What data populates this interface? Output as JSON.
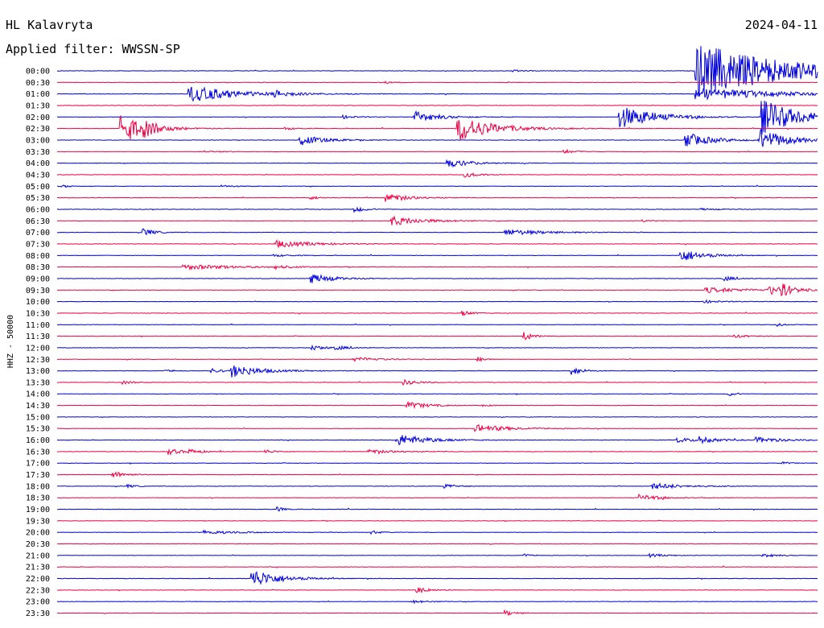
{
  "header": {
    "station": "HL Kalavryta",
    "date": "2024-04-11",
    "filter_label": "Applied filter: WWSSN-SP"
  },
  "chart_data": {
    "type": "line",
    "title": "HL Kalavryta",
    "subtitle": "Applied filter: WWSSN-SP",
    "date": "2024-04-11",
    "ylabel": "HHZ - 50000",
    "xlabel": "",
    "rows": [
      "00:00",
      "00:30",
      "01:00",
      "01:30",
      "02:00",
      "02:30",
      "03:00",
      "03:30",
      "04:00",
      "04:30",
      "05:00",
      "05:30",
      "06:00",
      "06:30",
      "07:00",
      "07:30",
      "08:00",
      "08:30",
      "09:00",
      "09:30",
      "10:00",
      "10:30",
      "11:00",
      "11:30",
      "12:00",
      "12:30",
      "13:00",
      "13:30",
      "14:00",
      "14:30",
      "15:00",
      "15:30",
      "16:00",
      "16:30",
      "17:00",
      "17:30",
      "18:00",
      "18:30",
      "19:00",
      "19:30",
      "20:00",
      "20:30",
      "21:00",
      "21:30",
      "22:00",
      "22:30",
      "23:00",
      "23:30"
    ],
    "minutes_per_row": 30,
    "colors": [
      "#0000dd",
      "#ee0044"
    ],
    "events": [
      {
        "row": 0,
        "minute": 18.0,
        "amp": 0.15,
        "dur": 0.6
      },
      {
        "row": 0,
        "minute": 26.0,
        "amp": 0.18,
        "dur": 0.7
      },
      {
        "row": 0,
        "minute": 25.2,
        "amp": 5.2,
        "dur": 3.5
      },
      {
        "row": 1,
        "minute": 13.0,
        "amp": 0.2,
        "dur": 0.4
      },
      {
        "row": 2,
        "minute": 5.2,
        "amp": 1.6,
        "dur": 1.8
      },
      {
        "row": 2,
        "minute": 8.6,
        "amp": 0.5,
        "dur": 0.6
      },
      {
        "row": 2,
        "minute": 25.2,
        "amp": 1.2,
        "dur": 3.0
      },
      {
        "row": 4,
        "minute": 11.3,
        "amp": 0.3,
        "dur": 0.5
      },
      {
        "row": 4,
        "minute": 14.1,
        "amp": 1.1,
        "dur": 0.9
      },
      {
        "row": 4,
        "minute": 22.2,
        "amp": 2.2,
        "dur": 1.3
      },
      {
        "row": 4,
        "minute": 27.8,
        "amp": 3.4,
        "dur": 1.4
      },
      {
        "row": 5,
        "minute": 2.5,
        "amp": 3.3,
        "dur": 0.8
      },
      {
        "row": 5,
        "minute": 3.4,
        "amp": 0.8,
        "dur": 0.6
      },
      {
        "row": 5,
        "minute": 15.8,
        "amp": 2.6,
        "dur": 1.3
      },
      {
        "row": 5,
        "minute": 9.0,
        "amp": 0.25,
        "dur": 0.4
      },
      {
        "row": 6,
        "minute": 9.6,
        "amp": 1.0,
        "dur": 0.9
      },
      {
        "row": 6,
        "minute": 24.8,
        "amp": 1.4,
        "dur": 1.0
      },
      {
        "row": 6,
        "minute": 27.7,
        "amp": 2.2,
        "dur": 1.0
      },
      {
        "row": 7,
        "minute": 20.0,
        "amp": 0.4,
        "dur": 0.4
      },
      {
        "row": 7,
        "minute": 5.8,
        "amp": 0.15,
        "dur": 0.6
      },
      {
        "row": 8,
        "minute": 15.4,
        "amp": 0.8,
        "dur": 0.9
      },
      {
        "row": 9,
        "minute": 16.1,
        "amp": 0.5,
        "dur": 0.5
      },
      {
        "row": 10,
        "minute": 6.5,
        "amp": 0.2,
        "dur": 0.6
      },
      {
        "row": 10,
        "minute": 0.2,
        "amp": 0.3,
        "dur": 0.3
      },
      {
        "row": 11,
        "minute": 13.0,
        "amp": 0.8,
        "dur": 0.9
      },
      {
        "row": 11,
        "minute": 10.0,
        "amp": 0.3,
        "dur": 0.4
      },
      {
        "row": 12,
        "minute": 11.7,
        "amp": 0.6,
        "dur": 0.4
      },
      {
        "row": 12,
        "minute": 25.4,
        "amp": 0.2,
        "dur": 0.6
      },
      {
        "row": 13,
        "minute": 13.2,
        "amp": 0.9,
        "dur": 1.2
      },
      {
        "row": 13,
        "minute": 23.1,
        "amp": 0.2,
        "dur": 0.4
      },
      {
        "row": 14,
        "minute": 3.4,
        "amp": 0.8,
        "dur": 0.4
      },
      {
        "row": 14,
        "minute": 17.7,
        "amp": 0.6,
        "dur": 1.5
      },
      {
        "row": 15,
        "minute": 8.6,
        "amp": 0.7,
        "dur": 1.4
      },
      {
        "row": 16,
        "minute": 24.6,
        "amp": 1.3,
        "dur": 0.8
      },
      {
        "row": 16,
        "minute": 8.5,
        "amp": 0.25,
        "dur": 0.6
      },
      {
        "row": 17,
        "minute": 5.0,
        "amp": 0.5,
        "dur": 1.8
      },
      {
        "row": 17,
        "minute": 8.6,
        "amp": 0.35,
        "dur": 0.5
      },
      {
        "row": 18,
        "minute": 10.0,
        "amp": 1.0,
        "dur": 0.8
      },
      {
        "row": 18,
        "minute": 26.3,
        "amp": 0.5,
        "dur": 0.4
      },
      {
        "row": 19,
        "minute": 25.6,
        "amp": 0.5,
        "dur": 1.6
      },
      {
        "row": 19,
        "minute": 28.1,
        "amp": 0.9,
        "dur": 0.5
      },
      {
        "row": 19,
        "minute": 28.6,
        "amp": 1.0,
        "dur": 0.5
      },
      {
        "row": 20,
        "minute": 25.5,
        "amp": 0.3,
        "dur": 0.6
      },
      {
        "row": 21,
        "minute": 16.0,
        "amp": 0.5,
        "dur": 0.4
      },
      {
        "row": 22,
        "minute": 28.4,
        "amp": 0.3,
        "dur": 0.3
      },
      {
        "row": 23,
        "minute": 18.4,
        "amp": 1.0,
        "dur": 0.3
      },
      {
        "row": 23,
        "minute": 26.7,
        "amp": 0.3,
        "dur": 0.6
      },
      {
        "row": 24,
        "minute": 10.0,
        "amp": 0.6,
        "dur": 0.5
      },
      {
        "row": 24,
        "minute": 11.0,
        "amp": 0.4,
        "dur": 0.4
      },
      {
        "row": 25,
        "minute": 11.7,
        "amp": 0.4,
        "dur": 1.0
      },
      {
        "row": 25,
        "minute": 16.6,
        "amp": 0.4,
        "dur": 0.3
      },
      {
        "row": 26,
        "minute": 6.9,
        "amp": 1.2,
        "dur": 1.1
      },
      {
        "row": 26,
        "minute": 6.1,
        "amp": 0.4,
        "dur": 0.4
      },
      {
        "row": 26,
        "minute": 4.3,
        "amp": 0.25,
        "dur": 0.4
      },
      {
        "row": 26,
        "minute": 20.3,
        "amp": 0.9,
        "dur": 0.4
      },
      {
        "row": 27,
        "minute": 2.6,
        "amp": 0.3,
        "dur": 0.5
      },
      {
        "row": 27,
        "minute": 13.7,
        "amp": 0.5,
        "dur": 0.6
      },
      {
        "row": 28,
        "minute": 26.5,
        "amp": 0.4,
        "dur": 0.3
      },
      {
        "row": 29,
        "minute": 13.8,
        "amp": 0.8,
        "dur": 0.7
      },
      {
        "row": 29,
        "minute": 16.8,
        "amp": 0.15,
        "dur": 0.5
      },
      {
        "row": 31,
        "minute": 16.5,
        "amp": 0.8,
        "dur": 1.2
      },
      {
        "row": 32,
        "minute": 13.4,
        "amp": 1.2,
        "dur": 1.1
      },
      {
        "row": 32,
        "minute": 24.4,
        "amp": 0.5,
        "dur": 0.8
      },
      {
        "row": 32,
        "minute": 25.3,
        "amp": 0.5,
        "dur": 0.7
      },
      {
        "row": 32,
        "minute": 27.6,
        "amp": 0.5,
        "dur": 1.1
      },
      {
        "row": 33,
        "minute": 4.4,
        "amp": 0.6,
        "dur": 0.5
      },
      {
        "row": 33,
        "minute": 5.2,
        "amp": 0.4,
        "dur": 0.5
      },
      {
        "row": 33,
        "minute": 8.2,
        "amp": 0.4,
        "dur": 0.4
      },
      {
        "row": 33,
        "minute": 12.3,
        "amp": 0.35,
        "dur": 1.3
      },
      {
        "row": 34,
        "minute": 28.6,
        "amp": 0.3,
        "dur": 0.3
      },
      {
        "row": 35,
        "minute": 2.2,
        "amp": 0.7,
        "dur": 0.5
      },
      {
        "row": 36,
        "minute": 2.8,
        "amp": 0.3,
        "dur": 0.3
      },
      {
        "row": 36,
        "minute": 15.3,
        "amp": 0.5,
        "dur": 0.4
      },
      {
        "row": 36,
        "minute": 23.5,
        "amp": 0.6,
        "dur": 1.1
      },
      {
        "row": 37,
        "minute": 23.0,
        "amp": 0.6,
        "dur": 0.8
      },
      {
        "row": 38,
        "minute": 8.7,
        "amp": 0.4,
        "dur": 0.3
      },
      {
        "row": 40,
        "minute": 5.8,
        "amp": 0.4,
        "dur": 1.2
      },
      {
        "row": 40,
        "minute": 12.4,
        "amp": 0.4,
        "dur": 0.3
      },
      {
        "row": 42,
        "minute": 18.4,
        "amp": 0.3,
        "dur": 0.3
      },
      {
        "row": 42,
        "minute": 23.4,
        "amp": 0.3,
        "dur": 0.6
      },
      {
        "row": 42,
        "minute": 27.8,
        "amp": 0.4,
        "dur": 0.5
      },
      {
        "row": 44,
        "minute": 7.7,
        "amp": 1.8,
        "dur": 1.0
      },
      {
        "row": 45,
        "minute": 14.2,
        "amp": 0.6,
        "dur": 0.5
      },
      {
        "row": 46,
        "minute": 14.0,
        "amp": 0.3,
        "dur": 0.6
      },
      {
        "row": 47,
        "minute": 17.7,
        "amp": 0.5,
        "dur": 0.4
      }
    ]
  }
}
